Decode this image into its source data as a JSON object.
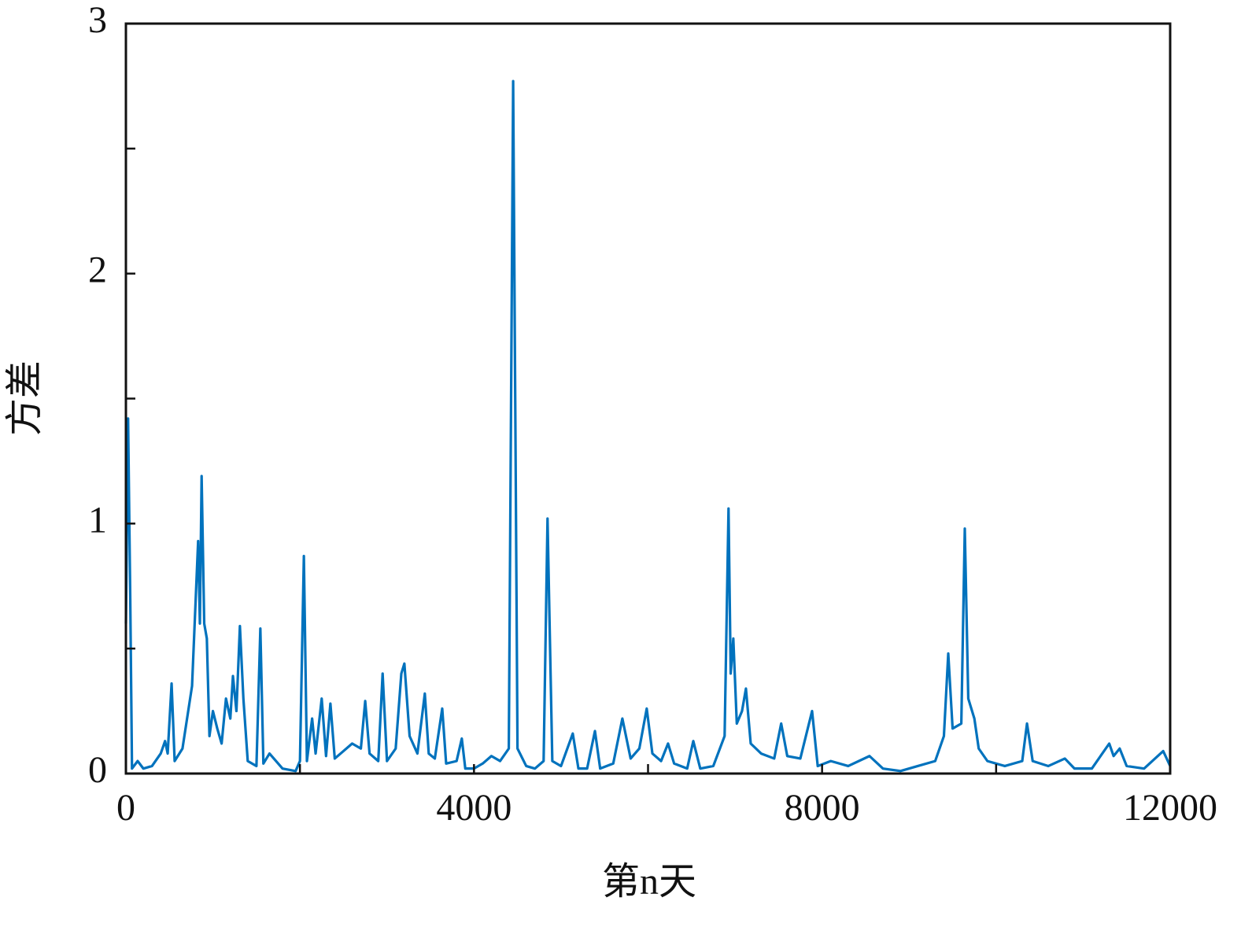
{
  "chart_data": {
    "type": "line",
    "xlabel": "第n天",
    "ylabel": "方差",
    "xlim": [
      0,
      12000
    ],
    "xticks": [
      0,
      4000,
      8000,
      12000
    ],
    "minor_xticks": [
      2000,
      6000,
      10000
    ],
    "ylim": [
      0,
      3
    ],
    "yticks": [
      0,
      1,
      2,
      3
    ],
    "minor_yticks": [
      0.5,
      1.5,
      2.5
    ],
    "series": [
      {
        "color": "#0072bd",
        "x": [
          0,
          25,
          50,
          70,
          135,
          200,
          300,
          400,
          450,
          480,
          525,
          560,
          650,
          760,
          830,
          850,
          870,
          900,
          930,
          960,
          1000,
          1050,
          1100,
          1150,
          1200,
          1230,
          1270,
          1310,
          1350,
          1400,
          1500,
          1545,
          1580,
          1650,
          1800,
          1950,
          2000,
          2045,
          2080,
          2140,
          2180,
          2250,
          2300,
          2350,
          2400,
          2500,
          2600,
          2700,
          2750,
          2800,
          2900,
          2950,
          3000,
          3100,
          3165,
          3200,
          3260,
          3350,
          3435,
          3480,
          3550,
          3635,
          3680,
          3800,
          3860,
          3900,
          4000,
          4100,
          4200,
          4300,
          4400,
          4450,
          4500,
          4600,
          4700,
          4800,
          4845,
          4900,
          5000,
          5135,
          5200,
          5300,
          5390,
          5450,
          5600,
          5705,
          5800,
          5900,
          5985,
          6050,
          6150,
          6230,
          6300,
          6450,
          6520,
          6600,
          6750,
          6880,
          6925,
          6950,
          6980,
          7020,
          7080,
          7125,
          7180,
          7300,
          7450,
          7530,
          7600,
          7750,
          7885,
          7950,
          8100,
          8300,
          8545,
          8700,
          8900,
          9100,
          9300,
          9400,
          9450,
          9500,
          9600,
          9640,
          9680,
          9750,
          9800,
          9900,
          10100,
          10300,
          10355,
          10420,
          10600,
          10790,
          10900,
          11100,
          11300,
          11350,
          11420,
          11500,
          11700,
          11920,
          12000
        ],
        "values": [
          0.6,
          1.42,
          0.7,
          0.02,
          0.05,
          0.02,
          0.03,
          0.08,
          0.13,
          0.08,
          0.36,
          0.05,
          0.1,
          0.35,
          0.93,
          0.6,
          1.19,
          0.6,
          0.54,
          0.15,
          0.25,
          0.18,
          0.12,
          0.3,
          0.22,
          0.39,
          0.25,
          0.59,
          0.3,
          0.05,
          0.03,
          0.58,
          0.04,
          0.08,
          0.02,
          0.01,
          0.05,
          0.87,
          0.05,
          0.22,
          0.08,
          0.3,
          0.07,
          0.28,
          0.06,
          0.09,
          0.12,
          0.1,
          0.29,
          0.08,
          0.05,
          0.4,
          0.05,
          0.1,
          0.4,
          0.44,
          0.15,
          0.08,
          0.32,
          0.08,
          0.06,
          0.26,
          0.04,
          0.05,
          0.14,
          0.02,
          0.02,
          0.04,
          0.07,
          0.05,
          0.1,
          2.77,
          0.1,
          0.03,
          0.02,
          0.05,
          1.02,
          0.05,
          0.03,
          0.16,
          0.02,
          0.02,
          0.17,
          0.02,
          0.04,
          0.22,
          0.06,
          0.1,
          0.26,
          0.08,
          0.05,
          0.12,
          0.04,
          0.02,
          0.13,
          0.02,
          0.03,
          0.15,
          1.06,
          0.4,
          0.54,
          0.2,
          0.25,
          0.34,
          0.12,
          0.08,
          0.06,
          0.2,
          0.07,
          0.06,
          0.25,
          0.03,
          0.05,
          0.03,
          0.07,
          0.02,
          0.01,
          0.03,
          0.05,
          0.15,
          0.48,
          0.18,
          0.2,
          0.98,
          0.3,
          0.22,
          0.1,
          0.05,
          0.03,
          0.05,
          0.2,
          0.05,
          0.03,
          0.06,
          0.02,
          0.02,
          0.12,
          0.07,
          0.1,
          0.03,
          0.02,
          0.09,
          0.03
        ]
      }
    ]
  }
}
